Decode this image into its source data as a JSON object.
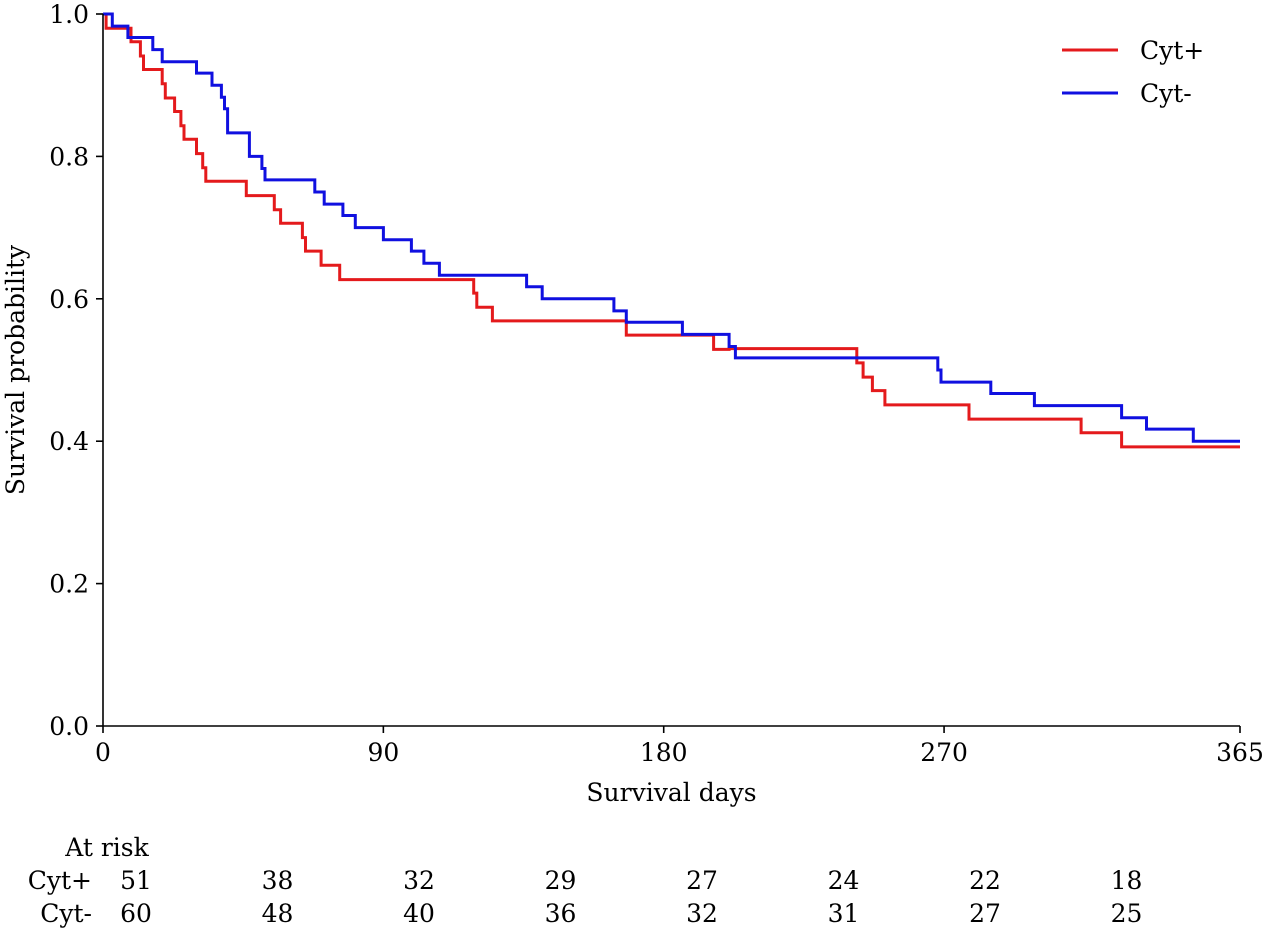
{
  "chart_data": {
    "type": "line",
    "subtype": "kaplan-meier",
    "xlabel": "Survival days",
    "ylabel": "Survival probability",
    "xlim": [
      0,
      365
    ],
    "ylim": [
      0,
      1.0
    ],
    "x_ticks": [
      0,
      90,
      180,
      270,
      365
    ],
    "y_ticks": [
      0.0,
      0.2,
      0.4,
      0.6,
      0.8,
      1.0
    ],
    "x_tick_labels": [
      "0",
      "90",
      "180",
      "270",
      "365"
    ],
    "y_tick_labels": [
      "0.0",
      "0.2",
      "0.4",
      "0.6",
      "0.8",
      "1.0"
    ],
    "grid": false,
    "legend_position": "top-right",
    "series": [
      {
        "name": "Cyt+",
        "color": "#e41a1c",
        "x": [
          0,
          1,
          1,
          7,
          7,
          9,
          9,
          12,
          12,
          13,
          13,
          19,
          19,
          20,
          20,
          23,
          23,
          25,
          25,
          26,
          26,
          30,
          30,
          32,
          32,
          33,
          33,
          46,
          46,
          55,
          55,
          57,
          57,
          64,
          64,
          65,
          65,
          70,
          70,
          76,
          76,
          119,
          119,
          120,
          120,
          125,
          125,
          168,
          168,
          196,
          196,
          201,
          201,
          242,
          242,
          244,
          244,
          247,
          247,
          251,
          251,
          278,
          278,
          314,
          314,
          327,
          327,
          365
        ],
        "y": [
          1.0,
          1.0,
          0.98,
          0.98,
          0.98,
          0.98,
          0.961,
          0.961,
          0.941,
          0.941,
          0.922,
          0.922,
          0.902,
          0.902,
          0.882,
          0.882,
          0.863,
          0.863,
          0.843,
          0.843,
          0.824,
          0.824,
          0.804,
          0.804,
          0.784,
          0.784,
          0.765,
          0.765,
          0.745,
          0.745,
          0.725,
          0.725,
          0.706,
          0.706,
          0.686,
          0.686,
          0.667,
          0.667,
          0.647,
          0.647,
          0.627,
          0.627,
          0.608,
          0.608,
          0.588,
          0.588,
          0.569,
          0.569,
          0.549,
          0.549,
          0.529,
          0.529,
          0.53,
          0.53,
          0.51,
          0.51,
          0.49,
          0.49,
          0.471,
          0.471,
          0.451,
          0.451,
          0.431,
          0.431,
          0.412,
          0.412,
          0.392,
          0.392
        ]
      },
      {
        "name": "Cyt-",
        "color": "#1010e0",
        "x": [
          0,
          3,
          3,
          8,
          8,
          12,
          12,
          16,
          16,
          19,
          19,
          30,
          30,
          35,
          35,
          38,
          38,
          39,
          39,
          40,
          40,
          47,
          47,
          51,
          51,
          52,
          52,
          68,
          68,
          71,
          71,
          77,
          77,
          81,
          81,
          90,
          90,
          99,
          99,
          103,
          103,
          108,
          108,
          136,
          136,
          141,
          141,
          164,
          164,
          168,
          168,
          186,
          186,
          201,
          201,
          203,
          203,
          268,
          268,
          269,
          269,
          285,
          285,
          299,
          299,
          327,
          327,
          335,
          335,
          350,
          350,
          365
        ],
        "y": [
          1.0,
          1.0,
          0.983,
          0.983,
          0.967,
          0.967,
          0.967,
          0.967,
          0.95,
          0.95,
          0.933,
          0.933,
          0.917,
          0.917,
          0.9,
          0.9,
          0.883,
          0.883,
          0.867,
          0.867,
          0.833,
          0.833,
          0.8,
          0.8,
          0.783,
          0.783,
          0.767,
          0.767,
          0.75,
          0.75,
          0.733,
          0.733,
          0.717,
          0.717,
          0.7,
          0.7,
          0.683,
          0.683,
          0.667,
          0.667,
          0.65,
          0.65,
          0.633,
          0.633,
          0.617,
          0.617,
          0.6,
          0.6,
          0.583,
          0.583,
          0.567,
          0.567,
          0.55,
          0.55,
          0.533,
          0.533,
          0.517,
          0.517,
          0.5,
          0.5,
          0.483,
          0.483,
          0.467,
          0.467,
          0.45,
          0.45,
          0.433,
          0.433,
          0.417,
          0.417,
          0.4,
          0.4
        ]
      }
    ],
    "at_risk": {
      "title": "At risk",
      "time_points": [
        0,
        45,
        90,
        135,
        180,
        225,
        270,
        315
      ],
      "rows": [
        {
          "label": "Cyt+",
          "counts": [
            "51",
            "38",
            "32",
            "29",
            "27",
            "24",
            "22",
            "18"
          ]
        },
        {
          "label": "Cyt-",
          "counts": [
            "60",
            "48",
            "40",
            "36",
            "32",
            "31",
            "27",
            "25"
          ]
        }
      ]
    }
  }
}
